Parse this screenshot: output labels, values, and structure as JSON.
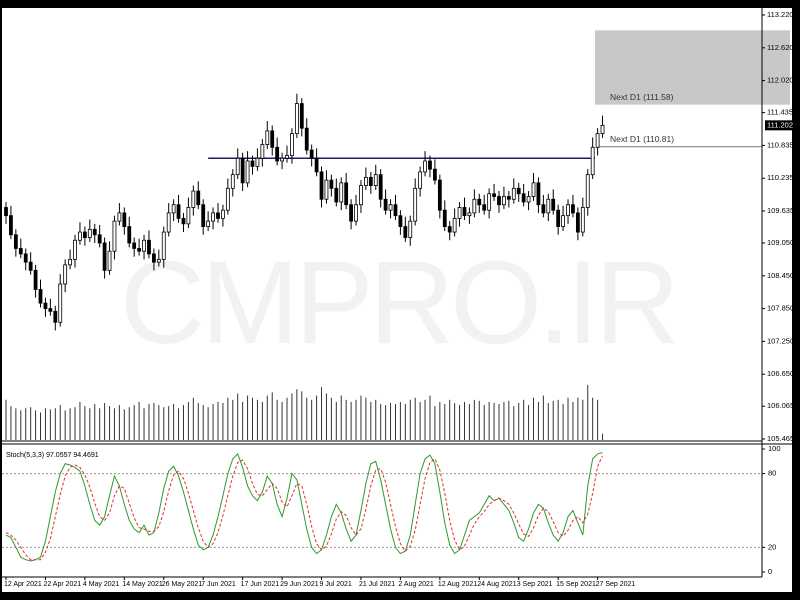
{
  "chart_data": [
    {
      "type": "candlestick",
      "watermark": "CMPRO.IR",
      "categories": [
        "12 Apr 2021",
        null,
        null,
        null,
        null,
        null,
        null,
        null,
        "22 Apr 2021",
        null,
        null,
        null,
        null,
        null,
        null,
        null,
        "4 May 2021",
        null,
        null,
        null,
        null,
        null,
        null,
        null,
        "14 May 2021",
        null,
        null,
        null,
        null,
        null,
        null,
        null,
        "26 May 2021",
        null,
        null,
        null,
        null,
        null,
        null,
        null,
        "7 Jun 2021",
        null,
        null,
        null,
        null,
        null,
        null,
        null,
        "17 Jun 2021",
        null,
        null,
        null,
        null,
        null,
        null,
        null,
        "29 Jun 2021",
        null,
        null,
        null,
        null,
        null,
        null,
        null,
        "9 Jul 2021",
        null,
        null,
        null,
        null,
        null,
        null,
        null,
        "21 Jul 2021",
        null,
        null,
        null,
        null,
        null,
        null,
        null,
        "2 Aug 2021",
        null,
        null,
        null,
        null,
        null,
        null,
        null,
        "12 Aug 2021",
        null,
        null,
        null,
        null,
        null,
        null,
        null,
        "24 Aug 2021",
        null,
        null,
        null,
        null,
        null,
        null,
        null,
        "3 Sep 2021",
        null,
        null,
        null,
        null,
        null,
        null,
        null,
        "15 Sep 2021",
        null,
        null,
        null,
        null,
        null,
        null,
        null,
        "27 Sep 2021",
        null
      ],
      "open": [
        109.7,
        109.55,
        109.2,
        108.95,
        108.85,
        108.7,
        108.55,
        108.2,
        107.95,
        107.85,
        107.8,
        107.6,
        108.3,
        108.65,
        108.75,
        109.1,
        109.25,
        109.15,
        109.3,
        109.2,
        109.05,
        108.55,
        108.9,
        109.45,
        109.6,
        109.35,
        109.05,
        108.95,
        108.9,
        109.1,
        108.85,
        108.7,
        108.75,
        109.25,
        109.6,
        109.75,
        109.5,
        109.4,
        109.7,
        110.0,
        109.75,
        109.35,
        109.45,
        109.6,
        109.5,
        109.65,
        110.05,
        110.3,
        110.6,
        110.15,
        110.55,
        110.45,
        110.6,
        110.85,
        111.1,
        110.8,
        110.55,
        110.6,
        110.65,
        111.05,
        111.6,
        111.15,
        110.75,
        110.6,
        110.35,
        109.85,
        110.2,
        110.05,
        109.8,
        110.15,
        109.75,
        109.45,
        109.75,
        110.1,
        110.25,
        110.1,
        110.3,
        109.85,
        109.65,
        109.75,
        109.55,
        109.35,
        109.15,
        109.45,
        110.05,
        110.35,
        110.55,
        110.4,
        110.2,
        109.65,
        109.35,
        109.25,
        109.5,
        109.7,
        109.55,
        109.6,
        109.85,
        109.75,
        109.65,
        109.95,
        109.9,
        109.75,
        109.9,
        109.85,
        110.05,
        109.95,
        109.8,
        109.9,
        110.15,
        109.75,
        109.6,
        109.85,
        109.65,
        109.35,
        109.55,
        109.75,
        109.6,
        109.25,
        109.7,
        110.3,
        110.8,
        111.05
      ],
      "high": [
        109.8,
        109.73,
        109.3,
        109.13,
        108.95,
        108.88,
        108.65,
        108.38,
        108.05,
        108.03,
        107.9,
        108.48,
        108.75,
        108.93,
        109.2,
        109.43,
        109.35,
        109.48,
        109.4,
        109.38,
        109.15,
        109.08,
        109.55,
        109.78,
        109.7,
        109.53,
        109.15,
        109.13,
        109.2,
        109.28,
        108.95,
        108.93,
        109.35,
        109.78,
        109.85,
        109.93,
        109.6,
        109.88,
        110.1,
        110.18,
        109.85,
        109.63,
        109.7,
        109.78,
        109.75,
        110.23,
        110.4,
        110.78,
        110.7,
        110.73,
        110.65,
        110.78,
        110.95,
        111.28,
        111.2,
        110.98,
        110.7,
        110.83,
        111.15,
        111.78,
        111.7,
        111.33,
        110.85,
        110.78,
        110.45,
        110.38,
        110.3,
        110.23,
        110.25,
        110.33,
        109.85,
        109.93,
        110.2,
        110.43,
        110.35,
        110.48,
        110.4,
        110.03,
        109.85,
        109.93,
        109.65,
        109.53,
        109.55,
        110.23,
        110.45,
        110.73,
        110.65,
        110.58,
        110.3,
        109.83,
        109.45,
        109.68,
        109.8,
        109.88,
        109.7,
        110.03,
        109.95,
        109.93,
        110.05,
        110.13,
        110.0,
        110.08,
        110.0,
        110.23,
        110.15,
        110.13,
        110.0,
        110.33,
        110.25,
        109.93,
        109.95,
        110.03,
        109.75,
        109.73,
        109.85,
        109.93,
        109.7,
        109.88,
        110.4,
        110.98,
        111.15,
        111.38
      ],
      "low": [
        109.4,
        109.12,
        108.8,
        108.77,
        108.55,
        108.47,
        108.05,
        107.87,
        107.7,
        107.72,
        107.45,
        107.52,
        108.15,
        108.57,
        108.6,
        109.02,
        109.0,
        109.07,
        109.05,
        108.97,
        108.4,
        108.47,
        108.75,
        109.37,
        109.2,
        108.97,
        108.8,
        108.82,
        108.75,
        108.77,
        108.55,
        108.62,
        108.6,
        109.17,
        109.45,
        109.42,
        109.25,
        109.32,
        109.55,
        109.67,
        109.2,
        109.27,
        109.3,
        109.42,
        109.35,
        109.57,
        109.9,
        110.22,
        110.0,
        110.07,
        110.3,
        110.37,
        110.45,
        110.77,
        110.65,
        110.47,
        110.4,
        110.52,
        110.5,
        110.97,
        111.0,
        110.67,
        110.45,
        110.27,
        109.7,
        109.77,
        109.9,
        109.72,
        109.65,
        109.67,
        109.3,
        109.37,
        109.6,
        110.02,
        109.95,
        110.02,
        109.7,
        109.57,
        109.5,
        109.47,
        109.2,
        109.07,
        109.0,
        109.37,
        109.9,
        110.27,
        110.25,
        110.12,
        109.5,
        109.27,
        109.1,
        109.17,
        109.35,
        109.47,
        109.4,
        109.52,
        109.6,
        109.57,
        109.5,
        109.82,
        109.6,
        109.67,
        109.7,
        109.77,
        109.8,
        109.72,
        109.65,
        109.82,
        109.6,
        109.52,
        109.45,
        109.57,
        109.2,
        109.27,
        109.4,
        109.52,
        109.1,
        109.17,
        109.55,
        110.22,
        110.65,
        110.97
      ],
      "close": [
        109.55,
        109.2,
        108.95,
        108.85,
        108.7,
        108.55,
        108.2,
        107.95,
        107.85,
        107.8,
        107.6,
        108.3,
        108.65,
        108.75,
        109.1,
        109.25,
        109.15,
        109.3,
        109.2,
        109.05,
        108.55,
        108.9,
        109.45,
        109.6,
        109.35,
        109.05,
        108.95,
        108.9,
        109.1,
        108.85,
        108.7,
        108.75,
        109.25,
        109.6,
        109.75,
        109.5,
        109.4,
        109.7,
        110.0,
        109.75,
        109.35,
        109.45,
        109.6,
        109.5,
        109.65,
        110.05,
        110.3,
        110.6,
        110.15,
        110.55,
        110.45,
        110.6,
        110.85,
        111.1,
        110.8,
        110.55,
        110.6,
        110.65,
        111.05,
        111.6,
        111.15,
        110.75,
        110.6,
        110.35,
        109.85,
        110.2,
        110.05,
        109.8,
        110.15,
        109.75,
        109.45,
        109.75,
        110.1,
        110.25,
        110.1,
        110.3,
        109.85,
        109.65,
        109.75,
        109.55,
        109.35,
        109.15,
        109.45,
        110.05,
        110.35,
        110.55,
        110.4,
        110.2,
        109.65,
        109.35,
        109.25,
        109.5,
        109.7,
        109.55,
        109.6,
        109.85,
        109.75,
        109.65,
        109.95,
        109.9,
        109.75,
        109.9,
        109.85,
        110.05,
        109.95,
        109.8,
        109.9,
        110.15,
        109.75,
        109.6,
        109.85,
        109.65,
        109.35,
        109.55,
        109.75,
        109.6,
        109.25,
        109.7,
        110.3,
        110.8,
        111.05,
        111.202
      ],
      "volume": [
        38,
        32,
        30,
        28,
        30,
        31,
        28,
        26,
        30,
        29,
        30,
        33,
        28,
        30,
        31,
        36,
        32,
        30,
        34,
        30,
        35,
        32,
        30,
        33,
        29,
        31,
        33,
        36,
        30,
        34,
        35,
        33,
        31,
        32,
        34,
        30,
        33,
        36,
        40,
        35,
        33,
        31,
        34,
        36,
        35,
        40,
        38,
        44,
        36,
        42,
        40,
        38,
        36,
        42,
        45,
        38,
        36,
        40,
        44,
        48,
        46,
        40,
        38,
        42,
        50,
        44,
        40,
        36,
        42,
        38,
        36,
        38,
        42,
        40,
        36,
        38,
        34,
        33,
        35,
        34,
        36,
        34,
        38,
        40,
        36,
        38,
        42,
        32,
        36,
        34,
        38,
        35,
        33,
        36,
        34,
        38,
        37,
        33,
        36,
        35,
        34,
        36,
        37,
        32,
        35,
        38,
        33,
        40,
        36,
        42,
        35,
        37,
        38,
        34,
        40,
        36,
        40,
        38,
        52,
        40,
        38,
        6
      ],
      "up_color": "#ffffff",
      "down_color": "#000000",
      "volume_color": "#333333",
      "ylim": [
        105.465,
        113.22
      ],
      "yticks": [
        {
          "value": 113.22,
          "label": "113.220"
        },
        {
          "value": 112.62,
          "label": "112.620"
        },
        {
          "value": 112.02,
          "label": "112.020"
        },
        111.435,
        110.835,
        110.235,
        109.635,
        {
          "value": 109.05,
          "label": "109.050"
        },
        {
          "value": 108.45,
          "label": "108.450"
        },
        {
          "value": 107.85,
          "label": "107.850"
        },
        {
          "value": 107.25,
          "label": "107.250"
        },
        {
          "value": 106.65,
          "label": "106.650"
        },
        106.065,
        105.465
      ],
      "current_price": {
        "value": 111.202,
        "label": "111.202"
      },
      "annotations": [
        {
          "value": 111.58,
          "label": "Next D1 (111.58)"
        },
        {
          "value": 110.81,
          "label": "Next D1 (110.81)"
        }
      ],
      "zone_top": 112.94,
      "support_level": 110.6
    },
    {
      "type": "line",
      "title": "Stoch(5,3,3) 97.0557 94.4691",
      "series": [
        {
          "color": "#2e9a2e",
          "values": [
            30,
            28,
            20,
            12,
            10,
            9,
            10,
            12,
            25,
            45,
            65,
            80,
            88,
            87,
            85,
            82,
            70,
            55,
            42,
            38,
            45,
            62,
            78,
            70,
            55,
            42,
            35,
            32,
            38,
            30,
            32,
            48,
            68,
            82,
            86,
            78,
            65,
            50,
            35,
            22,
            18,
            20,
            30,
            45,
            62,
            80,
            92,
            96,
            85,
            70,
            62,
            58,
            65,
            78,
            72,
            55,
            45,
            60,
            80,
            75,
            55,
            35,
            20,
            15,
            18,
            30,
            45,
            55,
            48,
            35,
            25,
            30,
            50,
            72,
            88,
            90,
            75,
            55,
            35,
            20,
            15,
            17,
            30,
            55,
            80,
            92,
            95,
            88,
            65,
            40,
            22,
            15,
            18,
            30,
            42,
            45,
            48,
            55,
            62,
            58,
            60,
            55,
            50,
            40,
            28,
            25,
            35,
            48,
            55,
            52,
            40,
            30,
            25,
            32,
            45,
            50,
            40,
            30,
            70,
            92,
            96,
            97.0557
          ]
        },
        {
          "color": "#e03030",
          "dashed": true,
          "values": [
            32,
            30,
            26,
            20,
            14,
            10,
            10,
            10,
            16,
            27,
            45,
            63,
            78,
            85,
            87,
            85,
            79,
            69,
            56,
            45,
            42,
            48,
            62,
            70,
            68,
            56,
            44,
            36,
            35,
            33,
            33,
            37,
            49,
            66,
            79,
            82,
            76,
            64,
            50,
            36,
            25,
            20,
            23,
            32,
            46,
            62,
            78,
            89,
            91,
            84,
            72,
            63,
            62,
            67,
            72,
            68,
            57,
            53,
            62,
            72,
            70,
            55,
            37,
            23,
            18,
            21,
            31,
            43,
            49,
            46,
            36,
            30,
            35,
            51,
            70,
            83,
            84,
            73,
            55,
            37,
            23,
            17,
            21,
            34,
            55,
            76,
            89,
            92,
            83,
            64,
            42,
            26,
            18,
            21,
            30,
            39,
            45,
            49,
            55,
            58,
            60,
            58,
            55,
            48,
            39,
            31,
            29,
            36,
            46,
            52,
            49,
            41,
            32,
            29,
            34,
            42,
            45,
            40,
            47,
            64,
            86,
            94.4691
          ]
        }
      ],
      "ylim": [
        0,
        100
      ],
      "yticks": [
        100,
        80,
        20,
        0
      ],
      "levels": [
        80,
        20
      ]
    }
  ]
}
